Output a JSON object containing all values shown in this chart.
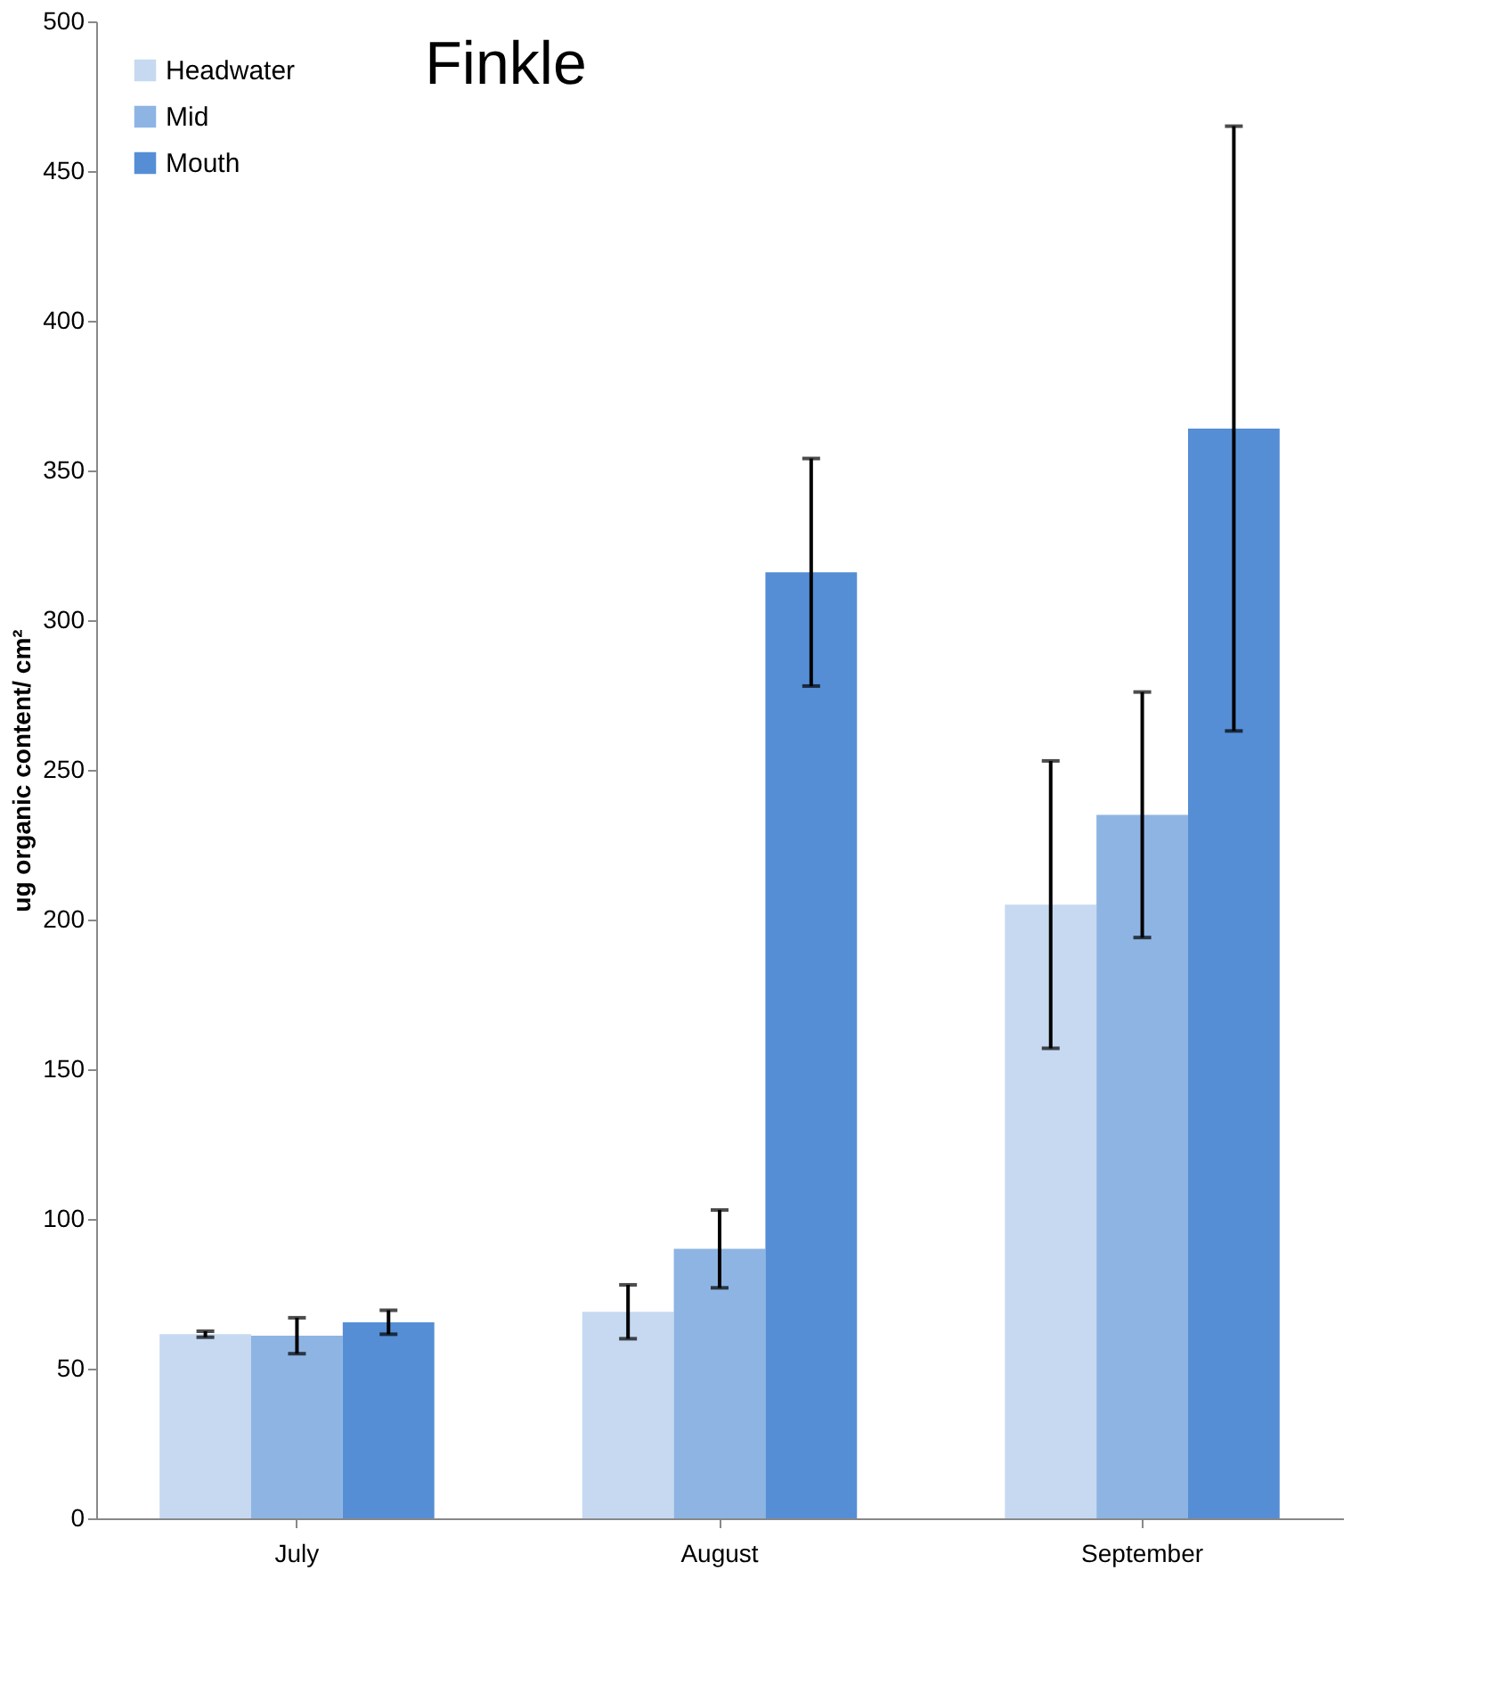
{
  "chart_data": {
    "type": "bar",
    "title": "Finkle",
    "ylabel": "ug organic content/ cm²",
    "categories": [
      "July",
      "August",
      "September"
    ],
    "series": [
      {
        "name": "Headwater",
        "color": "#c6d9f1",
        "values": [
          61.5,
          69,
          205
        ],
        "errors": [
          1,
          9,
          48
        ]
      },
      {
        "name": "Mid",
        "color": "#8eb4e3",
        "values": [
          61,
          90,
          235
        ],
        "errors": [
          6,
          13,
          41
        ]
      },
      {
        "name": "Mouth",
        "color": "#558ed5",
        "values": [
          65.5,
          316,
          364
        ],
        "errors": [
          4,
          38,
          101
        ]
      }
    ],
    "ylim": [
      0,
      500
    ],
    "yticks": [
      0,
      50,
      100,
      150,
      200,
      250,
      300,
      350,
      400,
      450,
      500
    ],
    "grid": false,
    "legend": "top left"
  }
}
